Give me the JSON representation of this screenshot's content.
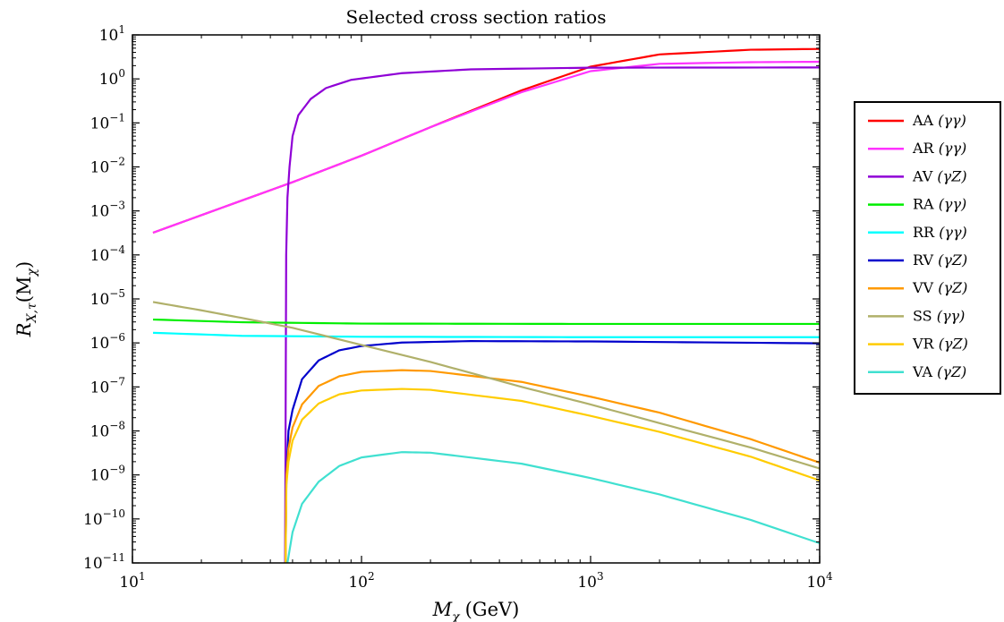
{
  "chart_data": {
    "type": "line",
    "title": "Selected cross section ratios",
    "xlabel": {
      "main": "M",
      "sub": "χ",
      "unit": "(GeV)"
    },
    "ylabel": {
      "main": "R",
      "sub": "X,τ",
      "arg": "(M",
      "arg_sub": "χ",
      "close": ")"
    },
    "x_scale": "log",
    "y_scale": "log",
    "xlim": [
      10,
      10000
    ],
    "ylim": [
      1e-11,
      10
    ],
    "x_ticks": [
      {
        "value": 10,
        "base": "10",
        "exp": "1"
      },
      {
        "value": 100,
        "base": "10",
        "exp": "2"
      },
      {
        "value": 1000,
        "base": "10",
        "exp": "3"
      },
      {
        "value": 10000,
        "base": "10",
        "exp": "4"
      }
    ],
    "y_ticks": [
      {
        "value": 1e-11,
        "base": "10",
        "exp": "−11"
      },
      {
        "value": 1e-10,
        "base": "10",
        "exp": "−10"
      },
      {
        "value": 1e-09,
        "base": "10",
        "exp": "−9"
      },
      {
        "value": 1e-08,
        "base": "10",
        "exp": "−8"
      },
      {
        "value": 1e-07,
        "base": "10",
        "exp": "−7"
      },
      {
        "value": 1e-06,
        "base": "10",
        "exp": "−6"
      },
      {
        "value": 1e-05,
        "base": "10",
        "exp": "−5"
      },
      {
        "value": 0.0001,
        "base": "10",
        "exp": "−4"
      },
      {
        "value": 0.001,
        "base": "10",
        "exp": "−3"
      },
      {
        "value": 0.01,
        "base": "10",
        "exp": "−2"
      },
      {
        "value": 0.1,
        "base": "10",
        "exp": "−1"
      },
      {
        "value": 1,
        "base": "10",
        "exp": "0"
      },
      {
        "value": 10,
        "base": "10",
        "exp": "1"
      }
    ],
    "grid": false,
    "legend_position": "outside-right",
    "series": [
      {
        "name": "AA",
        "suffix": "(γγ)",
        "color": "#ff0000",
        "points": [
          [
            12.3,
            0.00032
          ],
          [
            50,
            0.0045
          ],
          [
            100,
            0.018
          ],
          [
            200,
            0.08
          ],
          [
            500,
            0.55
          ],
          [
            1000,
            1.9
          ],
          [
            2000,
            3.6
          ],
          [
            5000,
            4.6
          ],
          [
            10000,
            4.8
          ]
        ]
      },
      {
        "name": "AR",
        "suffix": "(γγ)",
        "color": "#ff33ff",
        "points": [
          [
            12.3,
            0.00032
          ],
          [
            50,
            0.0045
          ],
          [
            100,
            0.018
          ],
          [
            200,
            0.08
          ],
          [
            500,
            0.5
          ],
          [
            1000,
            1.5
          ],
          [
            2000,
            2.2
          ],
          [
            5000,
            2.4
          ],
          [
            10000,
            2.45
          ]
        ]
      },
      {
        "name": "AV",
        "suffix": "(γZ)",
        "color": "#8f00d6",
        "points": [
          [
            46.4,
            1e-11
          ],
          [
            46.9,
            0.0001
          ],
          [
            47.5,
            0.002
          ],
          [
            48.5,
            0.01
          ],
          [
            50,
            0.05
          ],
          [
            53,
            0.15
          ],
          [
            60,
            0.35
          ],
          [
            70,
            0.62
          ],
          [
            90,
            0.95
          ],
          [
            150,
            1.35
          ],
          [
            300,
            1.65
          ],
          [
            1000,
            1.8
          ],
          [
            10000,
            1.82
          ]
        ]
      },
      {
        "name": "RA",
        "suffix": "(γγ)",
        "color": "#00ee00",
        "points": [
          [
            12.3,
            3.4e-06
          ],
          [
            30,
            2.95e-06
          ],
          [
            100,
            2.75e-06
          ],
          [
            1000,
            2.7e-06
          ],
          [
            10000,
            2.7e-06
          ]
        ]
      },
      {
        "name": "RR",
        "suffix": "(γγ)",
        "color": "#00ffff",
        "points": [
          [
            12.3,
            1.7e-06
          ],
          [
            30,
            1.45e-06
          ],
          [
            100,
            1.38e-06
          ],
          [
            1000,
            1.35e-06
          ],
          [
            10000,
            1.35e-06
          ]
        ]
      },
      {
        "name": "RV",
        "suffix": "(γZ)",
        "color": "#0000cc",
        "points": [
          [
            46.6,
            1e-11
          ],
          [
            47,
            1e-09
          ],
          [
            48,
            1e-08
          ],
          [
            50,
            3e-08
          ],
          [
            55,
            1.5e-07
          ],
          [
            65,
            4e-07
          ],
          [
            80,
            6.8e-07
          ],
          [
            100,
            8.5e-07
          ],
          [
            150,
            1.02e-06
          ],
          [
            300,
            1.1e-06
          ],
          [
            1000,
            1.08e-06
          ],
          [
            10000,
            9.8e-07
          ]
        ]
      },
      {
        "name": "VV",
        "suffix": "(γZ)",
        "color": "#ff9900",
        "points": [
          [
            46.6,
            1e-11
          ],
          [
            47,
            1e-09
          ],
          [
            48,
            4e-09
          ],
          [
            50,
            1.2e-08
          ],
          [
            55,
            4e-08
          ],
          [
            65,
            1.05e-07
          ],
          [
            80,
            1.75e-07
          ],
          [
            100,
            2.2e-07
          ],
          [
            150,
            2.4e-07
          ],
          [
            200,
            2.3e-07
          ],
          [
            500,
            1.3e-07
          ],
          [
            1000,
            6e-08
          ],
          [
            2000,
            2.6e-08
          ],
          [
            5000,
            6.5e-09
          ],
          [
            10000,
            1.9e-09
          ]
        ]
      },
      {
        "name": "SS",
        "suffix": "(γγ)",
        "color": "#b0b06a",
        "points": [
          [
            12.3,
            8.5e-06
          ],
          [
            20,
            5.5e-06
          ],
          [
            30,
            3.7e-06
          ],
          [
            50,
            2.2e-06
          ],
          [
            100,
            9e-07
          ],
          [
            200,
            3.7e-07
          ],
          [
            500,
            1e-07
          ],
          [
            1000,
            4e-08
          ],
          [
            2000,
            1.5e-08
          ],
          [
            5000,
            4.2e-09
          ],
          [
            10000,
            1.4e-09
          ]
        ]
      },
      {
        "name": "VR",
        "suffix": "(γZ)",
        "color": "#ffcc00",
        "points": [
          [
            46.6,
            1e-11
          ],
          [
            47,
            6e-10
          ],
          [
            48,
            2e-09
          ],
          [
            50,
            6e-09
          ],
          [
            55,
            1.8e-08
          ],
          [
            65,
            4.2e-08
          ],
          [
            80,
            6.8e-08
          ],
          [
            100,
            8.3e-08
          ],
          [
            150,
            9e-08
          ],
          [
            200,
            8.6e-08
          ],
          [
            500,
            4.8e-08
          ],
          [
            1000,
            2.2e-08
          ],
          [
            2000,
            9.5e-09
          ],
          [
            5000,
            2.6e-09
          ],
          [
            10000,
            7.5e-10
          ]
        ]
      },
      {
        "name": "VA",
        "suffix": "(γZ)",
        "color": "#40e0d0",
        "points": [
          [
            47.5,
            1e-11
          ],
          [
            50,
            5e-11
          ],
          [
            55,
            2.2e-10
          ],
          [
            65,
            7e-10
          ],
          [
            80,
            1.6e-09
          ],
          [
            100,
            2.5e-09
          ],
          [
            150,
            3.3e-09
          ],
          [
            200,
            3.2e-09
          ],
          [
            500,
            1.8e-09
          ],
          [
            1000,
            8.5e-10
          ],
          [
            2000,
            3.6e-10
          ],
          [
            5000,
            9.5e-11
          ],
          [
            10000,
            2.8e-11
          ]
        ]
      }
    ]
  }
}
